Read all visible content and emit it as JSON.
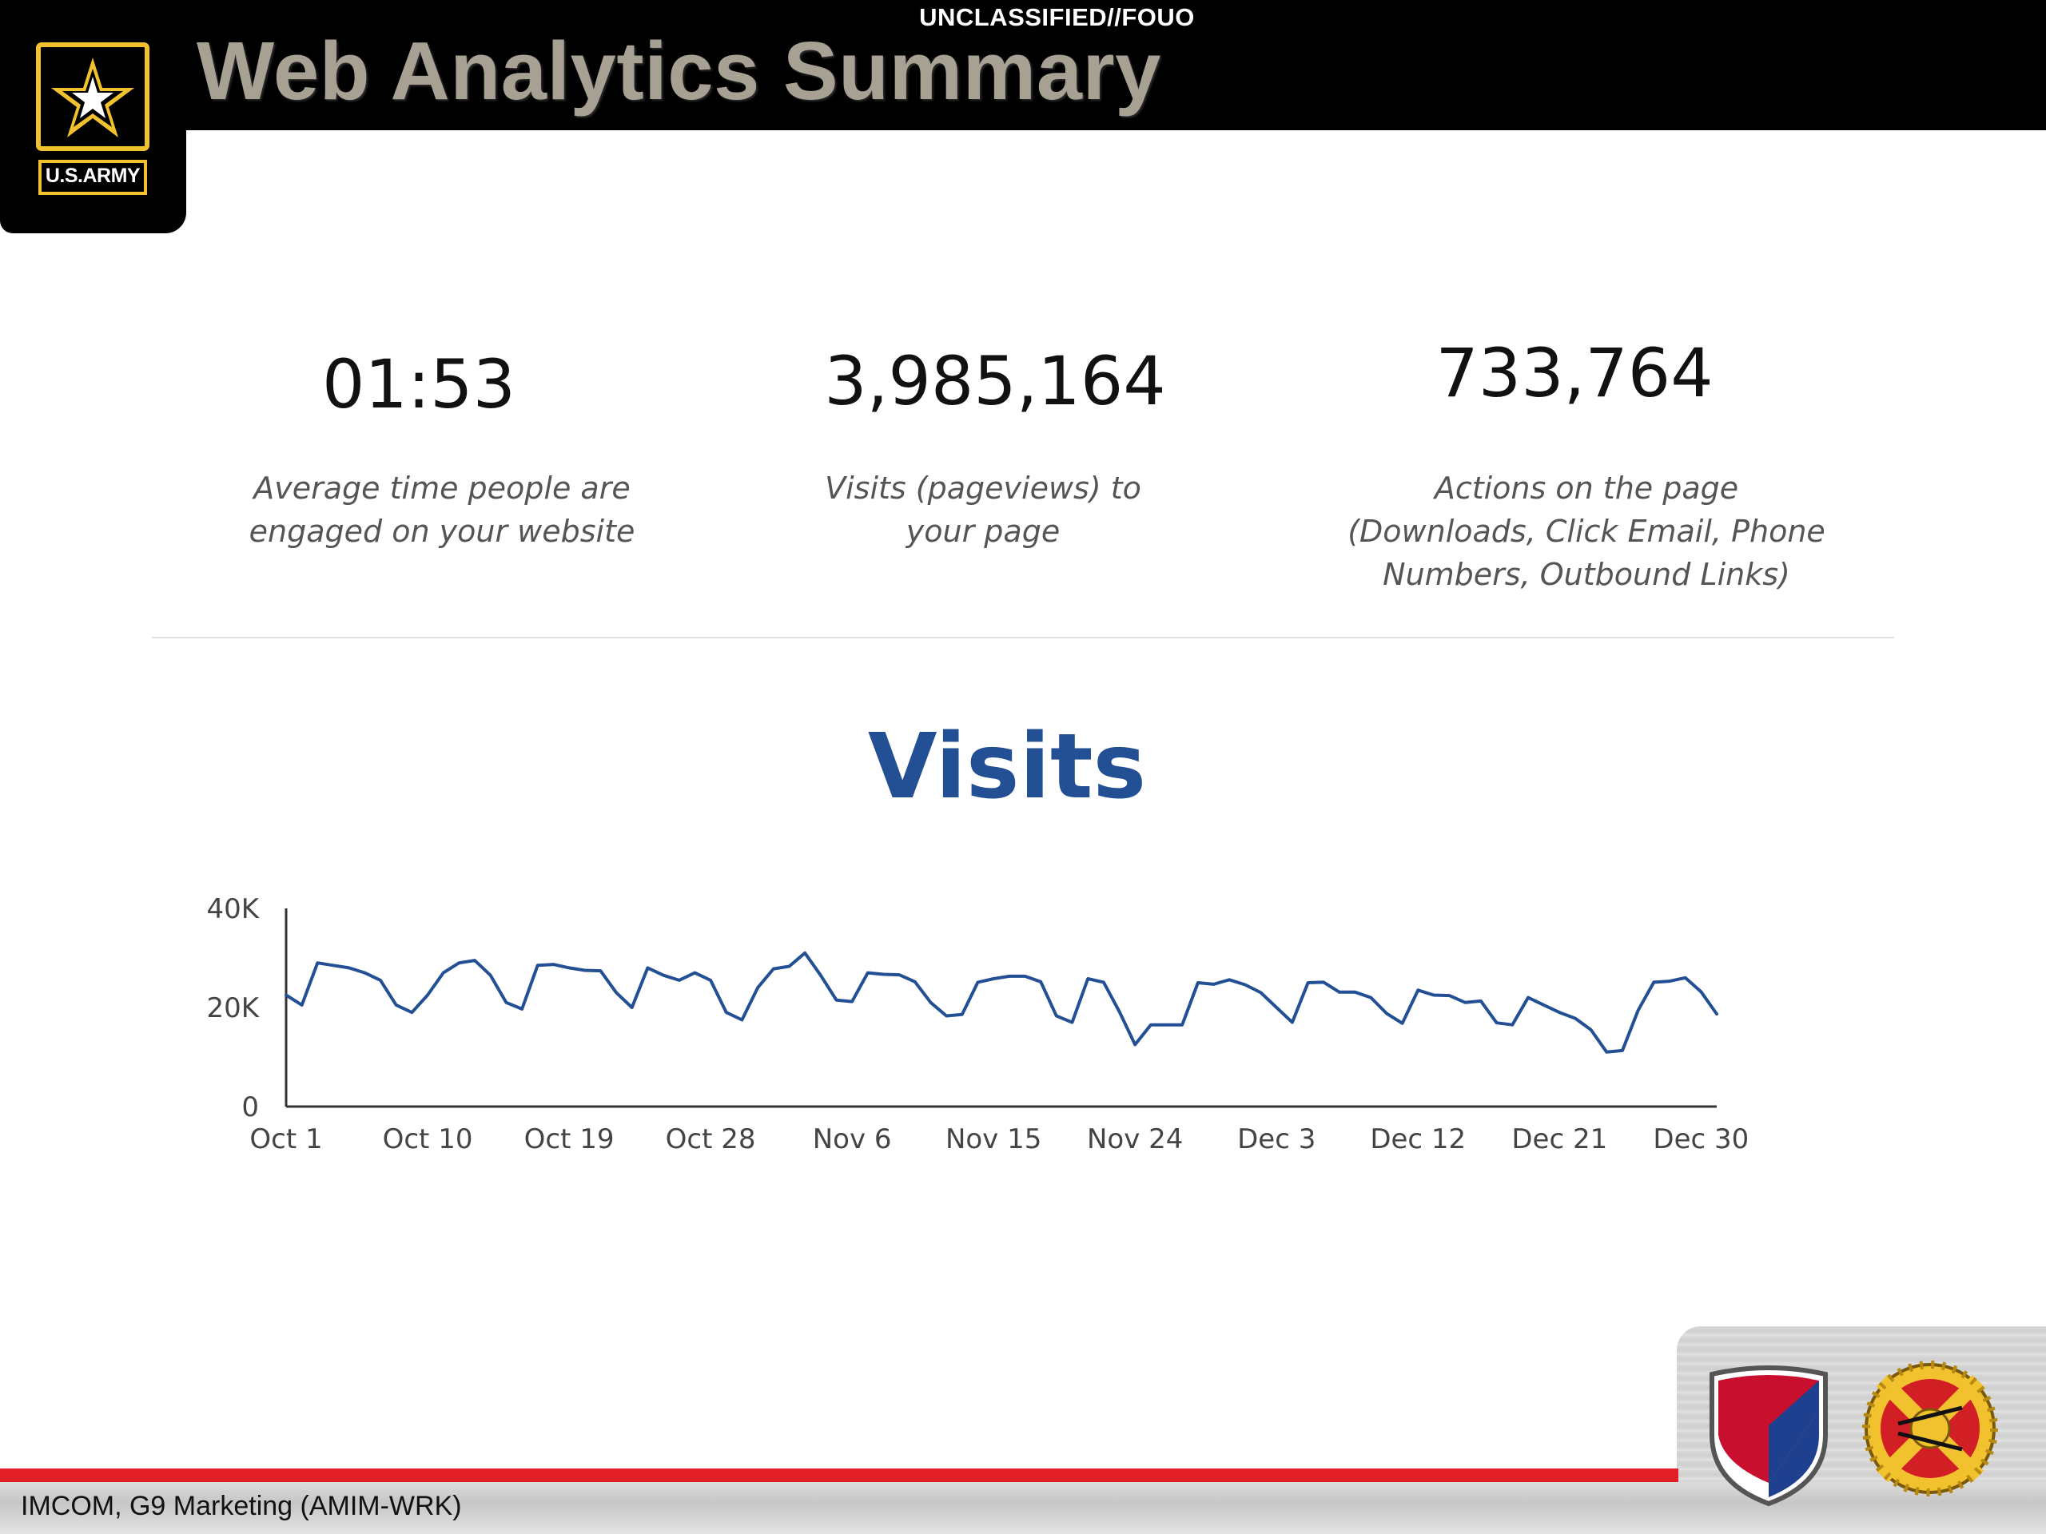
{
  "header": {
    "classification": "UNCLASSIFIED//FOUO",
    "title": "Web Analytics Summary",
    "logo_text": "U.S.ARMY"
  },
  "kpis": [
    {
      "value": "01:53",
      "caption": "Average time people are engaged on your website"
    },
    {
      "value": "3,985,164",
      "caption": "Visits (pageviews) to your page"
    },
    {
      "value": "733,764",
      "caption": "Actions on the page (Downloads, Click Email, Phone Numbers,  Outbound Links)"
    }
  ],
  "kpi_caption_lines": [
    [
      "Average time people are",
      "engaged on your website"
    ],
    [
      "Visits (pageviews) to",
      "your page"
    ],
    [
      "Actions on the page",
      "(Downloads, Click Email, Phone",
      "Numbers,  Outbound Links)"
    ]
  ],
  "colors": {
    "line": "#234f94",
    "title": "#234f94",
    "header_title": "#a6a193",
    "footer_red": "#e21f26"
  },
  "chart_data": {
    "type": "line",
    "title": "Visits",
    "xlabel": "",
    "ylabel": "",
    "ylim": [
      0,
      40000
    ],
    "yticks": [
      {
        "value": 0,
        "label": "0"
      },
      {
        "value": 20000,
        "label": "20K"
      },
      {
        "value": 40000,
        "label": "40K"
      }
    ],
    "xticks": [
      {
        "index": 0,
        "label": "Oct 1"
      },
      {
        "index": 9,
        "label": "Oct 10"
      },
      {
        "index": 18,
        "label": "Oct 19"
      },
      {
        "index": 27,
        "label": "Oct 28"
      },
      {
        "index": 36,
        "label": "Nov 6"
      },
      {
        "index": 45,
        "label": "Nov 15"
      },
      {
        "index": 54,
        "label": "Nov 24"
      },
      {
        "index": 63,
        "label": "Dec 3"
      },
      {
        "index": 72,
        "label": "Dec 12"
      },
      {
        "index": 81,
        "label": "Dec 21"
      },
      {
        "index": 90,
        "label": "Dec 30"
      }
    ],
    "grid": false,
    "series": [
      {
        "values": [
          22500,
          20500,
          29000,
          28500,
          28000,
          27000,
          25500,
          20500,
          19000,
          22500,
          27000,
          29000,
          29500,
          26500,
          21000,
          19700,
          28500,
          28700,
          28000,
          27500,
          27400,
          23000,
          20000,
          28000,
          26500,
          25500,
          27000,
          25500,
          19000,
          17500,
          24000,
          27800,
          28300,
          31000,
          26500,
          21500,
          21200,
          27000,
          26700,
          26600,
          25200,
          21000,
          18300,
          18600,
          25100,
          25800,
          26300,
          26300,
          25200,
          18300,
          17000,
          25800,
          25100,
          19200,
          12500,
          16500,
          16500,
          16500,
          25000,
          24700,
          25600,
          24600,
          23000,
          20000,
          17000,
          25000,
          25100,
          23100,
          23100,
          22000,
          18800,
          16800,
          23500,
          22500,
          22400,
          21000,
          21300,
          16900,
          16500,
          22000,
          20500,
          19000,
          17800,
          15500,
          11000,
          11300,
          19400,
          25100,
          25300,
          26000,
          23200,
          18700
        ]
      }
    ]
  },
  "footer": {
    "text": "IMCOM, G9 Marketing (AMIM-WRK)"
  }
}
